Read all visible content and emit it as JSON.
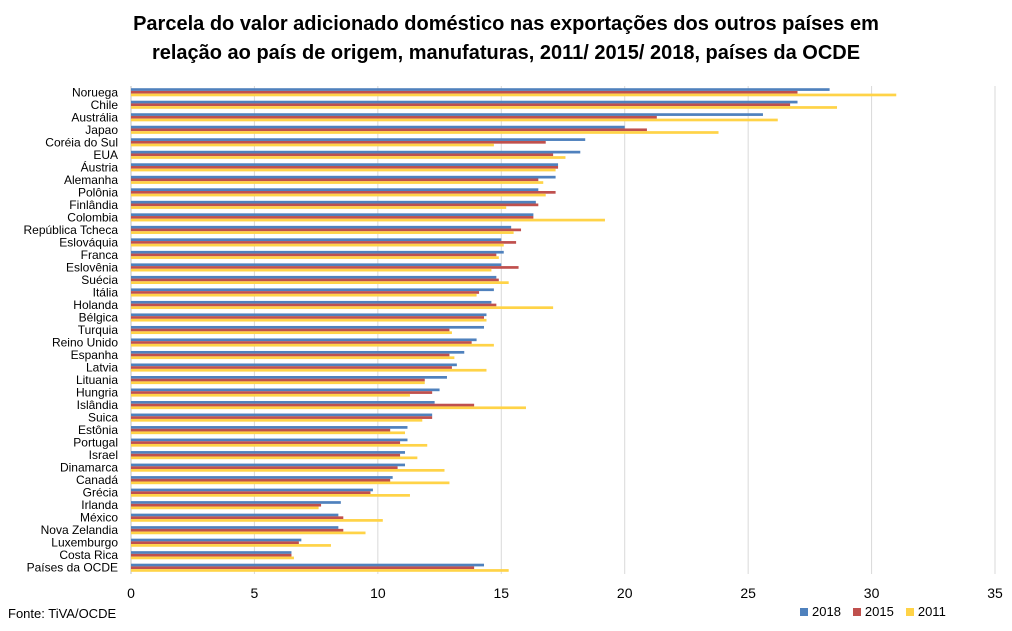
{
  "title_line1": "Parcela do valor adicionado doméstico nas exportações dos outros países em",
  "title_line2": "relação ao país de origem, manufaturas, 2011/ 2015/ 2018, países da OCDE",
  "source": "Fonte: TiVA/OCDE",
  "colors": {
    "2018": "#4f81bd",
    "2015": "#c0504d",
    "2011": "#ffd347",
    "grid": "#d9d9d9"
  },
  "chart_data": {
    "type": "bar",
    "orientation": "horizontal",
    "title": "Parcela do valor adicionado doméstico nas exportações dos outros países em relação ao país de origem, manufaturas, 2011/ 2015/ 2018, países da OCDE",
    "xlim": [
      0,
      35
    ],
    "xticks": [
      0,
      5,
      10,
      15,
      20,
      25,
      30,
      35
    ],
    "grid": true,
    "legend_position": "bottom-right",
    "categories": [
      "Noruega",
      "Chile",
      "Austrália",
      "Japao",
      "Coréia do Sul",
      "EUA",
      "Áustria",
      "Alemanha",
      "Polônia",
      "Finlândia",
      "Colombia",
      "República Tcheca",
      "Eslováquia",
      "Franca",
      "Eslovênia",
      "Suécia",
      "Itália",
      "Holanda",
      "Bélgica",
      "Turquia",
      "Reino Unido",
      "Espanha",
      "Latvia",
      "Lituania",
      "Hungria",
      "Islândia",
      "Suica",
      "Estônia",
      "Portugal",
      "Israel",
      "Dinamarca",
      "Canadá",
      "Grécia",
      "Irlanda",
      "México",
      "Nova Zelandia",
      "Luxemburgo",
      "Costa Rica",
      "Países da OCDE"
    ],
    "series": [
      {
        "name": "2018",
        "values": [
          28.3,
          27.0,
          25.6,
          20.0,
          18.4,
          18.2,
          17.3,
          17.2,
          16.5,
          16.4,
          16.3,
          15.4,
          15.0,
          15.1,
          15.0,
          14.8,
          14.7,
          14.6,
          14.4,
          14.3,
          14.0,
          13.5,
          13.2,
          12.8,
          12.5,
          12.3,
          12.2,
          11.2,
          11.2,
          11.1,
          11.1,
          10.6,
          9.8,
          8.5,
          8.4,
          8.4,
          6.9,
          6.5,
          14.3
        ]
      },
      {
        "name": "2015",
        "values": [
          27.0,
          26.7,
          21.3,
          20.9,
          16.8,
          17.1,
          17.3,
          16.5,
          17.2,
          16.5,
          16.3,
          15.8,
          15.6,
          14.8,
          15.7,
          14.9,
          14.1,
          14.8,
          14.3,
          12.9,
          13.8,
          12.9,
          13.0,
          11.9,
          12.2,
          13.9,
          12.2,
          10.5,
          10.9,
          10.9,
          10.8,
          10.5,
          9.7,
          7.7,
          8.6,
          8.6,
          6.8,
          6.5,
          13.9
        ]
      },
      {
        "name": "2011",
        "values": [
          31.0,
          28.6,
          26.2,
          23.8,
          14.7,
          17.6,
          17.2,
          16.7,
          16.8,
          15.2,
          19.2,
          15.5,
          15.1,
          14.9,
          14.6,
          15.3,
          14.0,
          17.1,
          14.4,
          13.0,
          14.7,
          13.1,
          14.4,
          11.9,
          11.3,
          16.0,
          11.8,
          11.1,
          12.0,
          11.6,
          12.7,
          12.9,
          11.3,
          7.6,
          10.2,
          9.5,
          8.1,
          6.6,
          15.3
        ]
      }
    ]
  }
}
